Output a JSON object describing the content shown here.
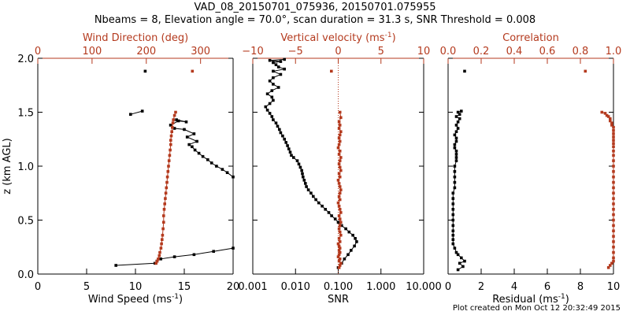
{
  "figure": {
    "title_line1": "VAD_08_20150701_075936, 20150701.075955",
    "title_line2": "Nbeams = 8, Elevation angle = 70.0°, scan duration = 31.3 s, SNR Threshold = 0.008",
    "footer": "Plot created on Mon Oct 12 20:32:49 2015"
  },
  "colors": {
    "primary": "#000000",
    "secondary": "#b43a1e"
  },
  "chart_data": [
    {
      "type": "scatter",
      "ylabel": "z (km AGL)",
      "ylim": [
        0,
        2
      ],
      "yticks": [
        "0.0",
        "0.5",
        "1.0",
        "1.5",
        "2.0"
      ],
      "bottom_axis": {
        "label": "Wind Speed (ms",
        "label_sup": "-1",
        "label_end": ")",
        "lim": [
          0,
          20
        ],
        "ticks": [
          "0",
          "5",
          "10",
          "15",
          "20"
        ],
        "tick_values": [
          0,
          5,
          10,
          15,
          20
        ]
      },
      "top_axis": {
        "label": "Wind Direction (deg)",
        "lim": [
          0,
          360
        ],
        "ticks": [
          "0",
          "100",
          "200",
          "300"
        ],
        "tick_values": [
          0,
          100,
          200,
          300
        ]
      },
      "series": [
        {
          "axis": "bottom",
          "color": "#000000",
          "connected": true,
          "x": [
            8,
            12,
            12.2,
            12.6,
            14,
            16,
            18,
            20
          ],
          "y": [
            0.08,
            0.1,
            0.12,
            0.14,
            0.16,
            0.18,
            0.21,
            0.24
          ]
        },
        {
          "axis": "bottom",
          "color": "#000000",
          "connected": true,
          "x": [
            20,
            19.4,
            18.9,
            18.3,
            17.8,
            17.4,
            16.9,
            16.5,
            16.1,
            15.8,
            15.5,
            16.3,
            15.3,
            16.0,
            15.0,
            14.0,
            13.6,
            14.4,
            15.2,
            14.2
          ],
          "y": [
            0.9,
            0.94,
            0.97,
            1.0,
            1.03,
            1.06,
            1.09,
            1.12,
            1.15,
            1.18,
            1.2,
            1.23,
            1.27,
            1.3,
            1.34,
            1.35,
            1.38,
            1.42,
            1.41,
            1.43
          ]
        },
        {
          "axis": "bottom",
          "color": "#000000",
          "connected": true,
          "x": [
            9.5,
            10.7
          ],
          "y": [
            1.48,
            1.51
          ]
        },
        {
          "axis": "bottom",
          "color": "#000000",
          "connected": false,
          "x": [
            11
          ],
          "y": [
            1.88
          ]
        },
        {
          "axis": "top",
          "color": "#b43a1e",
          "connected": true,
          "x": [
            218,
            220,
            222,
            224,
            225,
            227,
            228,
            229,
            230,
            231,
            232,
            232,
            233,
            234,
            235,
            236,
            237,
            238,
            239,
            240,
            241,
            242,
            243,
            244,
            245,
            245,
            246,
            247,
            248,
            249,
            250,
            252,
            254
          ],
          "y": [
            0.1,
            0.12,
            0.14,
            0.17,
            0.2,
            0.24,
            0.28,
            0.32,
            0.36,
            0.42,
            0.48,
            0.54,
            0.6,
            0.65,
            0.7,
            0.75,
            0.8,
            0.85,
            0.9,
            0.95,
            1.0,
            1.05,
            1.1,
            1.15,
            1.2,
            1.24,
            1.28,
            1.32,
            1.36,
            1.4,
            1.43,
            1.47,
            1.5
          ]
        },
        {
          "axis": "top",
          "color": "#b43a1e",
          "connected": false,
          "x": [
            285
          ],
          "y": [
            1.88
          ]
        }
      ]
    },
    {
      "type": "scatter",
      "bottom_axis": {
        "label": "SNR",
        "scale": "log",
        "lim": [
          0.001,
          10
        ],
        "ticks": [
          "0.001",
          "0.010",
          "0.100",
          "1.000",
          "10.000"
        ],
        "tick_values": [
          0.001,
          0.01,
          0.1,
          1,
          10
        ]
      },
      "top_axis": {
        "label": "Vertical velocity (ms",
        "label_sup": "-1",
        "label_end": ")",
        "lim": [
          -10,
          10
        ],
        "ticks": [
          "−10",
          "−5",
          "0",
          "5",
          "10"
        ],
        "tick_values": [
          -10,
          -5,
          0,
          5,
          10
        ]
      },
      "reference_line": {
        "axis": "top",
        "x": 0,
        "color": "#b43a1e",
        "style": "dotted"
      },
      "series": [
        {
          "axis": "bottom",
          "color": "#000000",
          "connected": true,
          "x": [
            0.1,
            0.12,
            0.14,
            0.17,
            0.2,
            0.24,
            0.27,
            0.25,
            0.22,
            0.18,
            0.15,
            0.12,
            0.1,
            0.085,
            0.07,
            0.06,
            0.05,
            0.042,
            0.035,
            0.03,
            0.026,
            0.023,
            0.02,
            0.018,
            0.017,
            0.016,
            0.015,
            0.0145,
            0.014,
            0.013,
            0.012,
            0.011,
            0.009,
            0.008,
            0.0075,
            0.007,
            0.0065,
            0.006,
            0.0055,
            0.005,
            0.0045,
            0.0042,
            0.0038,
            0.0035,
            0.003,
            0.0028,
            0.0025,
            0.0022,
            0.002,
            0.0025,
            0.003,
            0.0028,
            0.0022,
            0.0028,
            0.004,
            0.003,
            0.0025,
            0.003,
            0.0045,
            0.003,
            0.0055,
            0.004,
            0.0035,
            0.003,
            0.0045,
            0.0025,
            0.0055
          ],
          "y": [
            0.06,
            0.1,
            0.14,
            0.18,
            0.22,
            0.26,
            0.3,
            0.33,
            0.36,
            0.39,
            0.42,
            0.45,
            0.48,
            0.51,
            0.54,
            0.57,
            0.6,
            0.63,
            0.66,
            0.69,
            0.72,
            0.75,
            0.78,
            0.81,
            0.84,
            0.87,
            0.9,
            0.93,
            0.96,
            0.99,
            1.02,
            1.05,
            1.08,
            1.1,
            1.13,
            1.16,
            1.19,
            1.22,
            1.25,
            1.28,
            1.31,
            1.34,
            1.37,
            1.4,
            1.43,
            1.46,
            1.49,
            1.52,
            1.55,
            1.58,
            1.61,
            1.64,
            1.67,
            1.7,
            1.73,
            1.76,
            1.79,
            1.82,
            1.85,
            1.88,
            1.9,
            1.92,
            1.94,
            1.96,
            1.97,
            1.98,
            1.99
          ]
        },
        {
          "axis": "top",
          "color": "#b43a1e",
          "connected": true,
          "x": [
            0.1,
            0.2,
            0.3,
            0.1,
            0.2,
            0.0,
            0.1,
            0.2,
            0.1,
            0.2,
            0.1,
            0.0,
            0.2,
            0.1,
            0.3,
            0.2,
            0.1,
            0.2,
            0.3,
            0.2,
            0.1,
            0.3,
            0.2,
            0.1,
            0.0,
            0.2,
            0.1,
            0.2,
            0.3,
            0.2,
            0.1,
            0.0,
            0.2,
            0.1,
            0.3,
            0.2,
            0.1,
            0.2,
            0.3,
            0.1,
            0.2,
            0.0,
            0.1,
            0.2,
            0.1,
            0.2,
            0.3,
            0.1,
            0.2,
            0.1,
            0.3,
            0.2
          ],
          "y": [
            0.06,
            0.08,
            0.1,
            0.12,
            0.14,
            0.16,
            0.18,
            0.2,
            0.22,
            0.24,
            0.26,
            0.28,
            0.3,
            0.33,
            0.36,
            0.39,
            0.42,
            0.45,
            0.48,
            0.51,
            0.54,
            0.57,
            0.6,
            0.63,
            0.66,
            0.69,
            0.72,
            0.75,
            0.78,
            0.81,
            0.84,
            0.87,
            0.9,
            0.93,
            0.96,
            0.99,
            1.02,
            1.05,
            1.08,
            1.11,
            1.14,
            1.17,
            1.2,
            1.23,
            1.26,
            1.29,
            1.32,
            1.35,
            1.38,
            1.41,
            1.45,
            1.5
          ]
        },
        {
          "axis": "top",
          "color": "#b43a1e",
          "connected": false,
          "x": [
            -0.8
          ],
          "y": [
            1.88
          ]
        }
      ]
    },
    {
      "type": "scatter",
      "bottom_axis": {
        "label": "Residual (ms",
        "label_sup": "-1",
        "label_end": ")",
        "lim": [
          0,
          10
        ],
        "ticks": [
          "0",
          "2",
          "4",
          "6",
          "8",
          "10"
        ],
        "tick_values": [
          0,
          2,
          4,
          6,
          8,
          10
        ]
      },
      "top_axis": {
        "label": "Correlation",
        "lim": [
          0,
          1
        ],
        "ticks": [
          "0.0",
          "0.2",
          "0.4",
          "0.6",
          "0.8",
          "1.0"
        ],
        "tick_values": [
          0,
          0.2,
          0.4,
          0.6,
          0.8,
          1.0
        ]
      },
      "series": [
        {
          "axis": "bottom",
          "color": "#000000",
          "connected": true,
          "x": [
            0.6,
            0.9,
            0.7,
            1.0,
            0.8,
            0.6,
            0.5,
            0.4,
            0.3,
            0.3,
            0.3,
            0.3,
            0.3,
            0.3,
            0.3,
            0.3,
            0.3,
            0.3,
            0.3,
            0.4,
            0.4,
            0.4,
            0.4,
            0.4,
            0.5,
            0.5,
            0.5,
            0.5,
            0.4,
            0.4,
            0.5,
            0.5,
            0.4,
            0.5,
            0.6,
            0.5,
            0.6,
            0.7,
            0.5,
            0.7,
            0.6,
            0.8
          ],
          "y": [
            0.04,
            0.07,
            0.1,
            0.12,
            0.15,
            0.18,
            0.2,
            0.24,
            0.28,
            0.32,
            0.36,
            0.4,
            0.45,
            0.5,
            0.55,
            0.6,
            0.65,
            0.7,
            0.75,
            0.8,
            0.85,
            0.9,
            0.95,
            1.0,
            1.05,
            1.08,
            1.11,
            1.14,
            1.17,
            1.2,
            1.23,
            1.26,
            1.29,
            1.32,
            1.35,
            1.38,
            1.41,
            1.44,
            1.46,
            1.48,
            1.5,
            1.51
          ]
        },
        {
          "axis": "bottom",
          "color": "#000000",
          "connected": false,
          "x": [
            1.0
          ],
          "y": [
            1.88
          ]
        },
        {
          "axis": "top",
          "color": "#b43a1e",
          "connected": true,
          "x": [
            0.97,
            0.98,
            0.99,
            1.0,
            1.0,
            1.0,
            1.0,
            1.0,
            1.0,
            1.0,
            1.0,
            1.0,
            1.0,
            1.0,
            1.0,
            1.0,
            1.0,
            1.0,
            1.0,
            1.0,
            1.0,
            1.0,
            1.0,
            1.0,
            1.0,
            1.0,
            1.0,
            1.0,
            1.0,
            1.0,
            1.0,
            1.0,
            0.99,
            0.99,
            0.98,
            0.98,
            0.97,
            0.96,
            0.95,
            0.93
          ],
          "y": [
            0.06,
            0.08,
            0.1,
            0.12,
            0.15,
            0.2,
            0.25,
            0.3,
            0.35,
            0.4,
            0.45,
            0.5,
            0.55,
            0.6,
            0.65,
            0.7,
            0.75,
            0.8,
            0.85,
            0.9,
            0.95,
            1.0,
            1.05,
            1.1,
            1.14,
            1.18,
            1.21,
            1.24,
            1.27,
            1.3,
            1.33,
            1.36,
            1.38,
            1.4,
            1.42,
            1.44,
            1.46,
            1.47,
            1.49,
            1.5
          ]
        },
        {
          "axis": "top",
          "color": "#b43a1e",
          "connected": false,
          "x": [
            0.83
          ],
          "y": [
            1.88
          ]
        }
      ]
    }
  ]
}
